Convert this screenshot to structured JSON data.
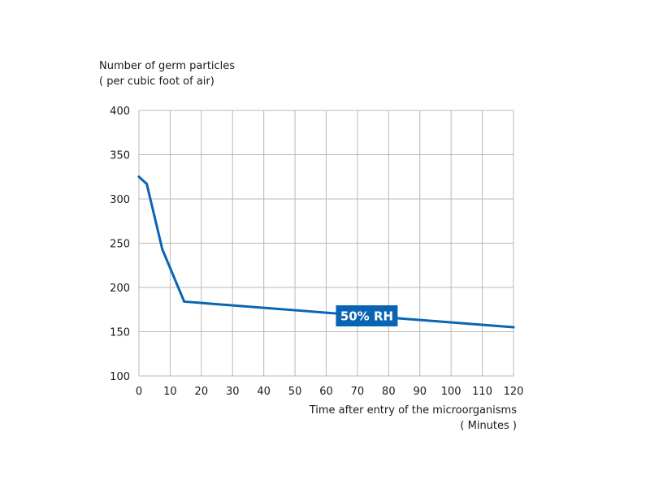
{
  "chart_data": {
    "type": "line",
    "title": "",
    "ylabel_lines": [
      "Number of germ particles",
      "( per cubic foot of air)"
    ],
    "xlabel_lines": [
      "Time after entry of the microorganisms",
      "( Minutes )"
    ],
    "xlim": [
      0,
      120
    ],
    "ylim": [
      100,
      400
    ],
    "xticks": [
      0,
      10,
      20,
      30,
      40,
      50,
      60,
      70,
      80,
      90,
      100,
      110,
      120
    ],
    "yticks": [
      100,
      150,
      200,
      250,
      300,
      350,
      400
    ],
    "grid": true,
    "series": [
      {
        "name": "50% RH",
        "color": "#0a64b4",
        "x": [
          0,
          2.5,
          7.5,
          14.5,
          120
        ],
        "y": [
          325,
          317,
          243,
          184,
          155
        ]
      }
    ],
    "annotations": [
      {
        "text": "50% RH",
        "series": 0,
        "x": 73
      }
    ]
  }
}
